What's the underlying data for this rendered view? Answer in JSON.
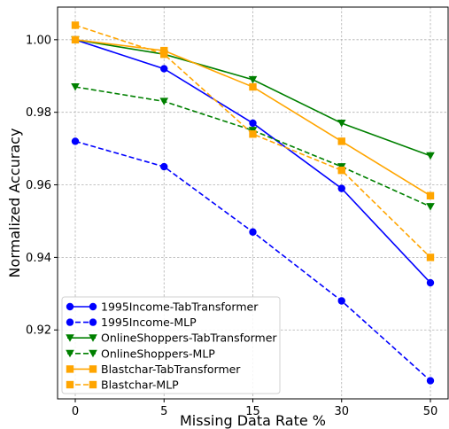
{
  "chart_data": {
    "type": "line",
    "xlabel": "Missing Data Rate %",
    "ylabel": "Normalized Accuracy",
    "x": [
      "0",
      "5",
      "15",
      "30",
      "50"
    ],
    "y_ticks": [
      "0.92",
      "0.94",
      "0.96",
      "0.98",
      "1.00"
    ],
    "ylim": [
      0.901,
      1.009
    ],
    "grid": true,
    "legend_position": "lower-left",
    "series": [
      {
        "name": "1995Income-TabTransformer",
        "color": "#0000ff",
        "style": "solid",
        "marker": "circle",
        "values": [
          1.0,
          0.992,
          0.977,
          0.959,
          0.933
        ]
      },
      {
        "name": "1995Income-MLP",
        "color": "#0000ff",
        "style": "dashed",
        "marker": "circle",
        "values": [
          0.972,
          0.965,
          0.947,
          0.928,
          0.906
        ]
      },
      {
        "name": "OnlineShoppers-TabTransformer",
        "color": "#008000",
        "style": "solid",
        "marker": "triangle-down",
        "values": [
          1.0,
          0.996,
          0.989,
          0.977,
          0.968
        ]
      },
      {
        "name": "OnlineShoppers-MLP",
        "color": "#008000",
        "style": "dashed",
        "marker": "triangle-down",
        "values": [
          0.987,
          0.983,
          0.975,
          0.965,
          0.954
        ]
      },
      {
        "name": "Blastchar-TabTransformer",
        "color": "#ffa500",
        "style": "solid",
        "marker": "square",
        "values": [
          1.0,
          0.997,
          0.987,
          0.972,
          0.957
        ]
      },
      {
        "name": "Blastchar-MLP",
        "color": "#ffa500",
        "style": "dashed",
        "marker": "square",
        "values": [
          1.004,
          0.996,
          0.974,
          0.964,
          0.94
        ]
      }
    ]
  }
}
